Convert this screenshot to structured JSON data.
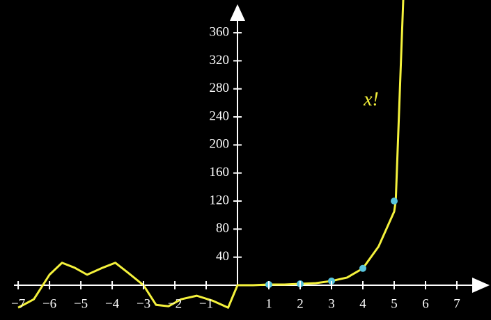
{
  "chart_data": {
    "type": "line",
    "annotation": "x!",
    "xlim": [
      -7.58,
      8.09
    ],
    "ylim": [
      -49.6,
      406.7
    ],
    "xticks": [
      {
        "value": -7,
        "label": "−7"
      },
      {
        "value": -6,
        "label": "−6"
      },
      {
        "value": -5,
        "label": "−5"
      },
      {
        "value": -4,
        "label": "−4"
      },
      {
        "value": -3,
        "label": "−3"
      },
      {
        "value": -2,
        "label": "−2"
      },
      {
        "value": -1,
        "label": "−1"
      },
      1,
      2,
      3,
      4,
      5,
      6,
      7
    ],
    "yticks": [
      40,
      80,
      120,
      160,
      200,
      240,
      280,
      320,
      360
    ],
    "series": [
      {
        "name": "x!",
        "color": "#f5f23c",
        "x": [
          -7,
          -6.5,
          -6,
          -5.6,
          -5.2,
          -4.8,
          -4.3,
          -3.9,
          -3.5,
          -3,
          -2.6,
          -2.2,
          -1.8,
          -1.3,
          -0.8,
          -0.3,
          0,
          0.5,
          1,
          1.5,
          2,
          2.5,
          3,
          3.5,
          4,
          4.5,
          5,
          5.05,
          5.2,
          5.3
        ],
        "values": [
          -32,
          -20,
          15,
          32,
          25,
          15,
          25,
          32,
          18,
          0,
          -28,
          -30,
          -20,
          -15,
          -22,
          -32,
          0,
          0,
          1,
          1,
          2,
          3,
          6,
          11,
          24,
          55,
          105,
          120,
          300,
          420
        ]
      },
      {
        "type": "scatter",
        "color": "#58c4dd",
        "x": [
          1,
          2,
          3,
          4,
          5
        ],
        "values": [
          1,
          2,
          6,
          24,
          120
        ]
      }
    ]
  }
}
